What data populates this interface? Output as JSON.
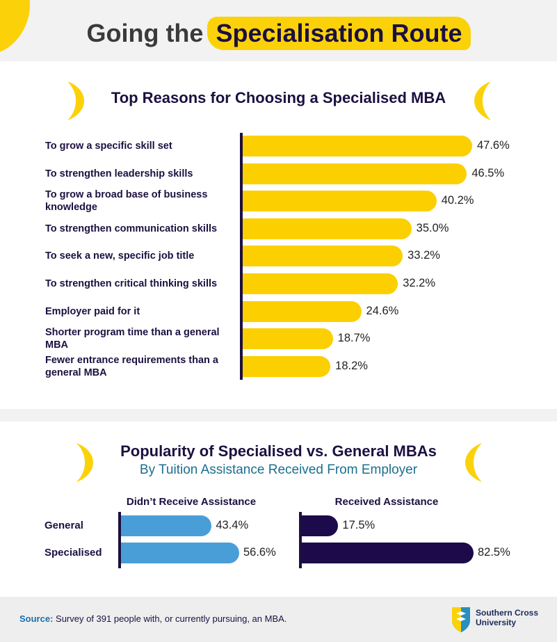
{
  "header": {
    "title_plain": "Going the",
    "title_highlight": "Specialisation Route"
  },
  "colors": {
    "accent_yellow": "#fccf00",
    "navy": "#1c0a4a",
    "blue": "#4a9ed8",
    "teal_text": "#1a6f8e"
  },
  "chart_data": [
    {
      "type": "bar",
      "orientation": "horizontal",
      "title": "Top Reasons for Choosing a Specialised MBA",
      "categories": [
        "To grow a specific skill set",
        "To strengthen leadership skills",
        "To grow a broad base of business knowledge",
        "To strengthen communication skills",
        "To seek a new, specific job title",
        "To strengthen critical thinking skills",
        "Employer paid for it",
        "Shorter program time than a general MBA",
        "Fewer entrance requirements than a general MBA"
      ],
      "values": [
        47.6,
        46.5,
        40.2,
        35.0,
        33.2,
        32.2,
        24.6,
        18.7,
        18.2
      ],
      "value_labels": [
        "47.6%",
        "46.5%",
        "40.2%",
        "35.0%",
        "33.2%",
        "32.2%",
        "24.6%",
        "18.7%",
        "18.2%"
      ],
      "bar_color": "#fccf00",
      "xlim": [
        0,
        50
      ]
    },
    {
      "type": "bar",
      "orientation": "horizontal",
      "title": "Popularity of Specialised vs. General MBAs",
      "subtitle": "By Tuition Assistance Received From Employer",
      "categories": [
        "General",
        "Specialised"
      ],
      "groups": [
        {
          "name": "Didn’t Receive Assistance",
          "values": [
            43.4,
            56.6
          ],
          "value_labels": [
            "43.4%",
            "56.6%"
          ],
          "color": "#4a9ed8"
        },
        {
          "name": "Received Assistance",
          "values": [
            17.5,
            82.5
          ],
          "value_labels": [
            "17.5%",
            "82.5%"
          ],
          "color": "#1c0a4a"
        }
      ],
      "xlim": [
        0,
        100
      ]
    }
  ],
  "footer": {
    "source_label": "Source:",
    "source_text": " Survey of 391 people with, or currently pursuing, an MBA.",
    "logo_text_line1": "Southern Cross",
    "logo_text_line2": "University",
    "logo_icon": "shield-logo-icon"
  }
}
